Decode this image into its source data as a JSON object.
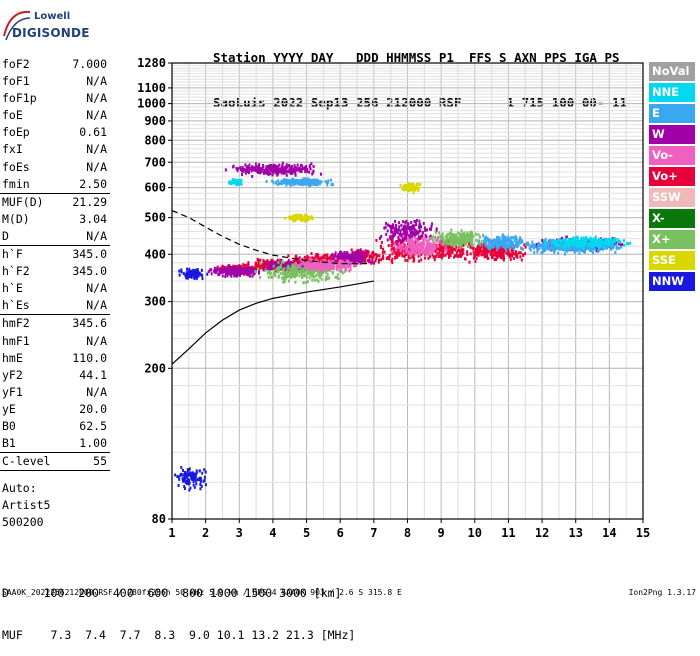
{
  "logo": {
    "line1": "Lowell",
    "line2": "DIGISONDE"
  },
  "header": {
    "labels": [
      "Station",
      "YYYY",
      "DAY",
      "DDD",
      "HHMMSS",
      "P1",
      "FFS",
      "S",
      "AXN",
      "PPS",
      "IGA",
      "PS"
    ],
    "values": [
      "SaoLuis",
      "2022",
      "Sep13",
      "256",
      "212000",
      "RSF",
      "",
      "1",
      "715",
      "100",
      "00-",
      "11"
    ]
  },
  "params": [
    {
      "group": [
        {
          "label": "foF2",
          "value": "7.000"
        },
        {
          "label": "foF1",
          "value": "N/A"
        },
        {
          "label": "foF1p",
          "value": "N/A"
        },
        {
          "label": "foE",
          "value": "N/A"
        },
        {
          "label": "foEp",
          "value": "0.61"
        },
        {
          "label": "fxI",
          "value": "N/A"
        },
        {
          "label": "foEs",
          "value": "N/A"
        },
        {
          "label": "fmin",
          "value": "2.50"
        }
      ]
    },
    {
      "group": [
        {
          "label": "MUF(D)",
          "value": "21.29"
        },
        {
          "label": "M(D)",
          "value": "3.04"
        },
        {
          "label": "D",
          "value": "N/A"
        }
      ]
    },
    {
      "group": [
        {
          "label": "h`F",
          "value": "345.0"
        },
        {
          "label": "h`F2",
          "value": "345.0"
        },
        {
          "label": "h`E",
          "value": "N/A"
        },
        {
          "label": "h`Es",
          "value": "N/A"
        }
      ]
    },
    {
      "group": [
        {
          "label": "hmF2",
          "value": "345.6"
        },
        {
          "label": "hmF1",
          "value": "N/A"
        },
        {
          "label": "hmE",
          "value": "110.0"
        },
        {
          "label": "yF2",
          "value": "44.1"
        },
        {
          "label": "yF1",
          "value": "N/A"
        },
        {
          "label": "yE",
          "value": "20.0"
        },
        {
          "label": "B0",
          "value": "62.5"
        },
        {
          "label": "B1",
          "value": "1.00"
        }
      ]
    },
    {
      "group": [
        {
          "label": "C-level",
          "value": "55"
        }
      ]
    }
  ],
  "autoscaling": {
    "line1": "Auto:",
    "line2": "Artist5",
    "line3": "500200"
  },
  "legend": [
    {
      "label": "NoVal",
      "color": "#a0a0a0"
    },
    {
      "label": "NNE",
      "color": "#00d8f0"
    },
    {
      "label": "E",
      "color": "#3aa8f0"
    },
    {
      "label": "W",
      "color": "#a000a8"
    },
    {
      "label": "Vo-",
      "color": "#f060c0"
    },
    {
      "label": "Vo+",
      "color": "#e8003a"
    },
    {
      "label": "SSW",
      "color": "#f0b8b8"
    },
    {
      "label": "X-",
      "color": "#087808"
    },
    {
      "label": "X+",
      "color": "#78c060"
    },
    {
      "label": "SSE",
      "color": "#d8d800"
    },
    {
      "label": "NNW",
      "color": "#1818e0"
    }
  ],
  "muf_table": {
    "d_label": "D",
    "d_values": [
      "100",
      "200",
      "400",
      "600",
      "800",
      "1000",
      "1500",
      "3000"
    ],
    "d_unit": "[km]",
    "muf_label": "MUF",
    "muf_values": [
      "7.3",
      "7.4",
      "7.7",
      "8.3",
      "9.0",
      "10.1",
      "13.2",
      "21.3"
    ],
    "muf_unit": "[MHz]"
  },
  "footer": "SAA0K_2022256212000.RSF / 280fx256h 50 kHz 5.0 km / DPS-4 SAA0K 903 / 2.6 S 315.8 E",
  "version": "Ion2Png 1.3.17",
  "chart_data": {
    "type": "scatter",
    "xlim": [
      1,
      15
    ],
    "ylim": [
      80,
      1280
    ],
    "x_ticks": [
      1,
      2,
      3,
      4,
      5,
      6,
      7,
      8,
      9,
      10,
      11,
      12,
      13,
      14,
      15
    ],
    "y_ticks": [
      80,
      200,
      300,
      400,
      500,
      600,
      700,
      800,
      900,
      1000,
      1100,
      1280
    ],
    "y_scale": "log",
    "x_minor_step": 0.5,
    "grid": true,
    "series": [
      {
        "name": "NNW",
        "color": "#1818e0",
        "clusters": [
          [
            1.6,
            355,
            0.5,
            14
          ],
          [
            1.55,
            103,
            0.6,
            8
          ]
        ]
      },
      {
        "name": "Vo+",
        "color": "#e8003a",
        "clusters": [
          [
            3.0,
            365,
            0.8,
            15
          ],
          [
            4.0,
            375,
            0.9,
            15
          ],
          [
            5.3,
            385,
            1.0,
            20
          ],
          [
            6.6,
            395,
            0.8,
            25
          ],
          [
            8.0,
            410,
            1.1,
            40
          ],
          [
            9.2,
            415,
            0.8,
            35
          ],
          [
            10.6,
            405,
            1.2,
            30
          ]
        ]
      },
      {
        "name": "W",
        "color": "#a000a8",
        "clusters": [
          [
            2.9,
            360,
            1.0,
            14
          ],
          [
            4.5,
            372,
            1.0,
            16
          ],
          [
            6.3,
            392,
            0.8,
            22
          ],
          [
            4.0,
            670,
            1.6,
            30
          ],
          [
            8.0,
            460,
            1.0,
            45
          ],
          [
            13.2,
            425,
            1.6,
            20
          ]
        ]
      },
      {
        "name": "E",
        "color": "#3aa8f0",
        "clusters": [
          [
            12.9,
            420,
            1.8,
            22
          ],
          [
            4.8,
            620,
            1.2,
            15
          ],
          [
            10.8,
            430,
            1.0,
            25
          ]
        ]
      },
      {
        "name": "NNE",
        "color": "#00d8f0",
        "clusters": [
          [
            13.3,
            430,
            1.6,
            18
          ],
          [
            2.9,
            620,
            0.3,
            12
          ]
        ]
      },
      {
        "name": "SSE",
        "color": "#d8d800",
        "clusters": [
          [
            4.8,
            500,
            0.5,
            12
          ],
          [
            8.1,
            600,
            0.4,
            20
          ]
        ]
      },
      {
        "name": "X+",
        "color": "#78c060",
        "clusters": [
          [
            4.9,
            360,
            1.5,
            30
          ],
          [
            9.5,
            440,
            1.0,
            30
          ]
        ]
      },
      {
        "name": "Vo-",
        "color": "#f060c0",
        "clusters": [
          [
            5.6,
            375,
            1.2,
            18
          ],
          [
            8.4,
            420,
            1.0,
            30
          ]
        ]
      }
    ],
    "solid_curve": [
      [
        1.0,
        205
      ],
      [
        1.5,
        225
      ],
      [
        2.0,
        248
      ],
      [
        2.5,
        268
      ],
      [
        3.0,
        285
      ],
      [
        3.5,
        297
      ],
      [
        4.0,
        306
      ],
      [
        5.0,
        318
      ],
      [
        6.0,
        328
      ],
      [
        7.0,
        340
      ]
    ],
    "dashed_curve": [
      [
        1.0,
        522
      ],
      [
        1.5,
        500
      ],
      [
        2.0,
        472
      ],
      [
        2.5,
        446
      ],
      [
        3.0,
        425
      ],
      [
        3.5,
        410
      ],
      [
        4.0,
        398
      ],
      [
        5.0,
        385
      ],
      [
        6.0,
        378
      ],
      [
        6.8,
        378
      ]
    ]
  }
}
